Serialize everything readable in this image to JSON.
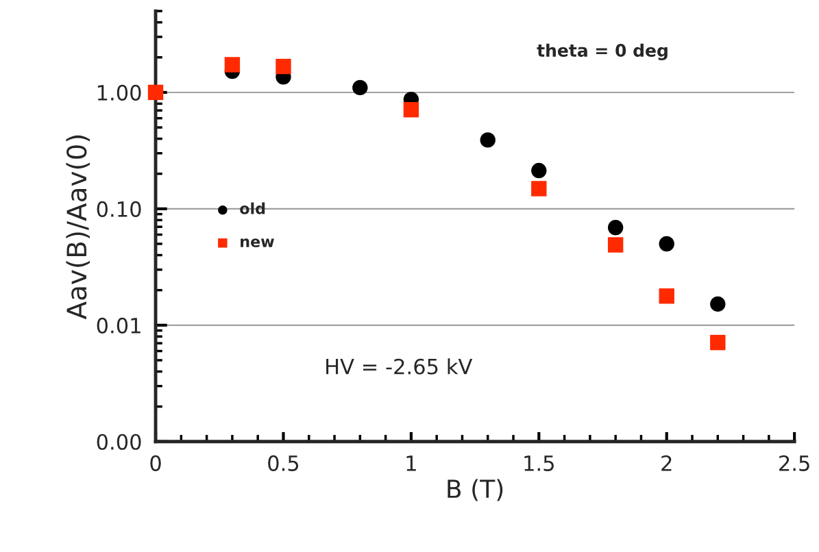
{
  "chart_data": {
    "type": "scatter",
    "xlabel": "B (T)",
    "ylabel": "Aav(B)/Aav(0)",
    "log": "y",
    "xlim": [
      0,
      2.5
    ],
    "xticks": [
      0,
      0.5,
      1,
      1.5,
      2,
      2.5
    ],
    "ylim": [
      0.001,
      5
    ],
    "yticks": [
      {
        "value": 0.001,
        "label": "0.00"
      },
      {
        "value": 0.01,
        "label": "0.01"
      },
      {
        "value": 0.1,
        "label": "0.10"
      },
      {
        "value": 1,
        "label": "1.00"
      }
    ],
    "grid": "y",
    "legend": "left",
    "series": [
      {
        "name": "old",
        "color": "#000000",
        "marker": "circle",
        "x": [
          0.3,
          0.5,
          0.8,
          1.0,
          1.3,
          1.5,
          1.8,
          2.0,
          2.2
        ],
        "values": [
          1.52,
          1.36,
          1.1,
          0.87,
          0.39,
          0.213,
          0.069,
          0.05,
          0.0152
        ]
      },
      {
        "name": "new",
        "color": "#ff2a00",
        "marker": "square",
        "x": [
          0,
          0.3,
          0.5,
          1.0,
          1.5,
          1.8,
          2.0,
          2.2
        ],
        "values": [
          1.0,
          1.73,
          1.67,
          0.71,
          0.149,
          0.049,
          0.0178,
          0.0071
        ]
      }
    ],
    "annotations": [
      "theta = 0 deg",
      "HV = -2.65 kV"
    ]
  }
}
